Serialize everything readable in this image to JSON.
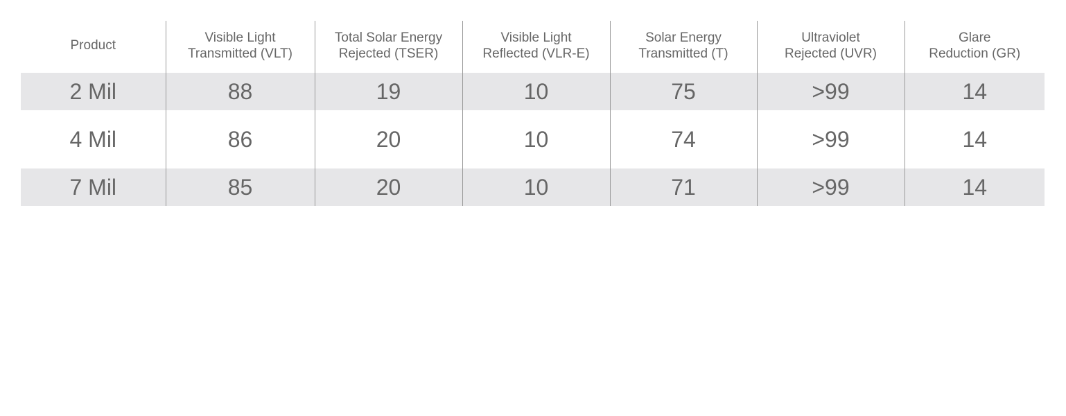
{
  "table": {
    "headers": [
      [
        "Product"
      ],
      [
        "Visible Light",
        "Transmitted (VLT)"
      ],
      [
        "Total Solar Energy",
        "Rejected (TSER)"
      ],
      [
        "Visible Light",
        "Reflected (VLR-E)"
      ],
      [
        "Solar Energy",
        "Transmitted (T)"
      ],
      [
        "Ultraviolet",
        "Rejected (UVR)"
      ],
      [
        "Glare",
        "Reduction (GR)"
      ]
    ],
    "rows": [
      [
        "2 Mil",
        88,
        19,
        10,
        75,
        ">99",
        14
      ],
      [
        "4 Mil",
        86,
        20,
        10,
        74,
        ">99",
        14
      ],
      [
        "7 Mil",
        85,
        20,
        10,
        71,
        ">99",
        14
      ]
    ]
  }
}
